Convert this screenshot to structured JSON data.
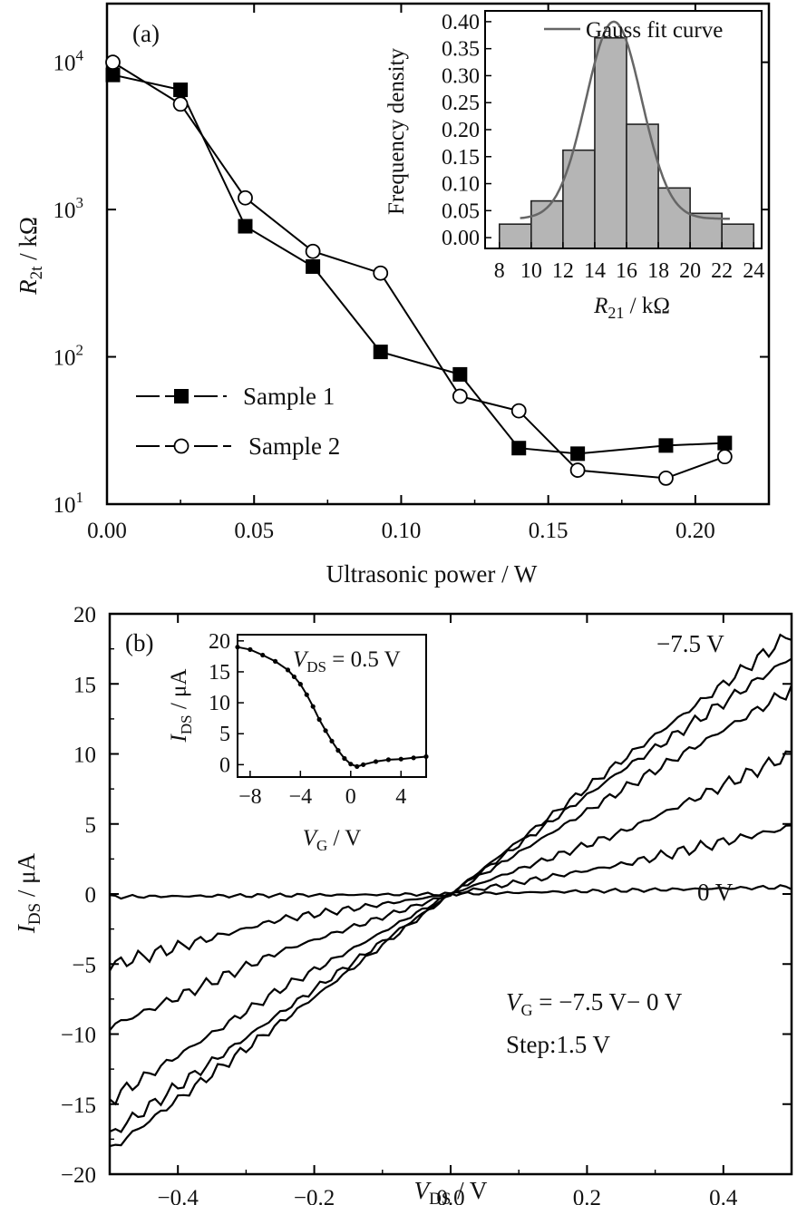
{
  "chart_data": [
    {
      "type": "line",
      "panel_label": "(a)",
      "xlabel": "Ultrasonic power / W",
      "ylabel": "R2t / kΩ",
      "ylabel_main": "R",
      "ylabel_sub": "2t",
      "ylabel_unit": " / kΩ",
      "xlim": [
        0,
        0.225
      ],
      "ylim": [
        10,
        25000
      ],
      "yscale": "log",
      "xticks": [
        0,
        0.05,
        0.1,
        0.15,
        0.2
      ],
      "xtick_labels": [
        "0.00",
        "0.05",
        "0.10",
        "0.15",
        "0.20"
      ],
      "yticks": [
        10,
        100,
        1000,
        10000
      ],
      "ytick_bases": [
        "10",
        "10",
        "10",
        "10"
      ],
      "ytick_exps": [
        "1",
        "2",
        "3",
        "4"
      ],
      "legend": {
        "position": "lower-left"
      },
      "series": [
        {
          "name": "Sample 1",
          "marker": "filled-square",
          "x": [
            0.002,
            0.025,
            0.047,
            0.07,
            0.093,
            0.12,
            0.14,
            0.16,
            0.19,
            0.21
          ],
          "y": [
            8200,
            6500,
            770,
            410,
            108,
            76,
            24,
            22,
            25,
            26
          ]
        },
        {
          "name": "Sample 2",
          "marker": "open-circle",
          "x": [
            0.002,
            0.025,
            0.047,
            0.07,
            0.093,
            0.12,
            0.14,
            0.16,
            0.19,
            0.21
          ],
          "y": [
            10000,
            5200,
            1200,
            520,
            370,
            54,
            43,
            17,
            15,
            21
          ]
        }
      ],
      "inset": {
        "type": "bar",
        "xlabel": "R21 / kΩ",
        "xlabel_main": "R",
        "xlabel_sub": "21",
        "xlabel_unit": " / kΩ",
        "ylabel": "Frequency density",
        "xlim": [
          8,
          24
        ],
        "ylim": [
          -0.02,
          0.42
        ],
        "xticks": [
          8,
          10,
          12,
          14,
          16,
          18,
          20,
          22,
          24
        ],
        "yticks": [
          0.0,
          0.05,
          0.1,
          0.15,
          0.2,
          0.25,
          0.3,
          0.35,
          0.4
        ],
        "ytick_labels": [
          "0.00",
          "0.05",
          "0.10",
          "0.15",
          "0.20",
          "0.25",
          "0.30",
          "0.35",
          "0.40"
        ],
        "bin_edges": [
          8,
          10,
          12,
          14,
          16,
          18,
          20,
          22,
          24
        ],
        "values": [
          0.025,
          0.068,
          0.162,
          0.37,
          0.21,
          0.092,
          0.045,
          0.025
        ],
        "fit": {
          "name": "Gauss fit curve",
          "mean": 15.2,
          "sigma": 1.75,
          "amplitude": 0.365,
          "offset": 0.035
        }
      }
    },
    {
      "type": "line",
      "panel_label": "(b)",
      "xlabel": "VDS / V",
      "xlabel_main": "V",
      "xlabel_sub": "DS",
      "xlabel_unit": " / V",
      "ylabel": "IDS / μA",
      "ylabel_main": "I",
      "ylabel_sub": "DS",
      "ylabel_unit": " / μA",
      "xlim": [
        -0.5,
        0.5
      ],
      "ylim": [
        -20,
        20
      ],
      "xticks": [
        -0.4,
        -0.2,
        0.0,
        0.2,
        0.4
      ],
      "xtick_labels": [
        "−0.4",
        "−0.2",
        "0.0",
        "0.2",
        "0.4"
      ],
      "yticks": [
        -20,
        -15,
        -10,
        -5,
        0,
        5,
        10,
        15,
        20
      ],
      "ytick_labels": [
        "−20",
        "−15",
        "−10",
        "−5",
        "0",
        "5",
        "10",
        "15",
        "20"
      ],
      "series": [
        {
          "gate_voltage": -7.5,
          "x": [
            -0.5,
            -0.25,
            0,
            0.25,
            0.5
          ],
          "y": [
            -18.3,
            -9.2,
            0,
            9.5,
            18.6
          ]
        },
        {
          "gate_voltage": -6.0,
          "x": [
            -0.5,
            -0.25,
            0,
            0.25,
            0.5
          ],
          "y": [
            -17.2,
            -8.5,
            0,
            8.8,
            16.9
          ]
        },
        {
          "gate_voltage": -4.5,
          "x": [
            -0.5,
            -0.25,
            0,
            0.25,
            0.5
          ],
          "y": [
            -14.7,
            -6.8,
            0,
            7.4,
            14.6
          ]
        },
        {
          "gate_voltage": -3.0,
          "x": [
            -0.5,
            -0.25,
            0,
            0.25,
            0.5
          ],
          "y": [
            -9.5,
            -4.1,
            0,
            4.4,
            10.0
          ]
        },
        {
          "gate_voltage": -1.5,
          "x": [
            -0.5,
            -0.25,
            0,
            0.25,
            0.5
          ],
          "y": [
            -5.1,
            -1.8,
            0,
            2.1,
            4.8
          ]
        },
        {
          "gate_voltage": 0.0,
          "x": [
            -0.5,
            -0.25,
            0,
            0.25,
            0.5
          ],
          "y": [
            -0.2,
            -0.1,
            0,
            0.25,
            0.5
          ]
        }
      ],
      "annotations": [
        {
          "text": "−7.5 V"
        },
        {
          "text": "0 V"
        },
        {
          "text_main": "V",
          "text_sub": "G",
          "text_rest": " = −7.5 V− 0 V"
        },
        {
          "text": "Step:1.5 V"
        }
      ],
      "inset": {
        "type": "scatter",
        "xlabel": "VG / V",
        "xlabel_main": "V",
        "xlabel_sub": "G",
        "xlabel_unit": " / V",
        "ylabel": "IDS / μA",
        "ylabel_main": "I",
        "ylabel_sub": "DS",
        "ylabel_unit": " / μA",
        "annotation_main": "V",
        "annotation_sub": "DS",
        "annotation_rest": " = 0.5 V",
        "xlim": [
          -9,
          6
        ],
        "ylim": [
          -2,
          21
        ],
        "xticks": [
          -8,
          -4,
          0,
          4
        ],
        "xtick_labels": [
          "−8",
          "−4",
          "0",
          "4"
        ],
        "yticks": [
          0,
          5,
          10,
          15,
          20
        ],
        "ytick_labels": [
          "0",
          "5",
          "10",
          "15",
          "20"
        ],
        "x": [
          -9.0,
          -8.0,
          -7.0,
          -6.0,
          -5.0,
          -4.5,
          -4.0,
          -3.5,
          -3.0,
          -2.5,
          -2.0,
          -1.5,
          -1.0,
          -0.5,
          0.0,
          0.5,
          1.0,
          2.0,
          3.0,
          4.0,
          5.0,
          6.0
        ],
        "y": [
          19.0,
          18.6,
          17.7,
          16.7,
          15.3,
          14.2,
          13.0,
          11.3,
          9.4,
          7.3,
          5.5,
          3.8,
          2.3,
          1.0,
          0.1,
          -0.3,
          0.0,
          0.5,
          0.8,
          0.9,
          1.1,
          1.3
        ]
      }
    }
  ]
}
